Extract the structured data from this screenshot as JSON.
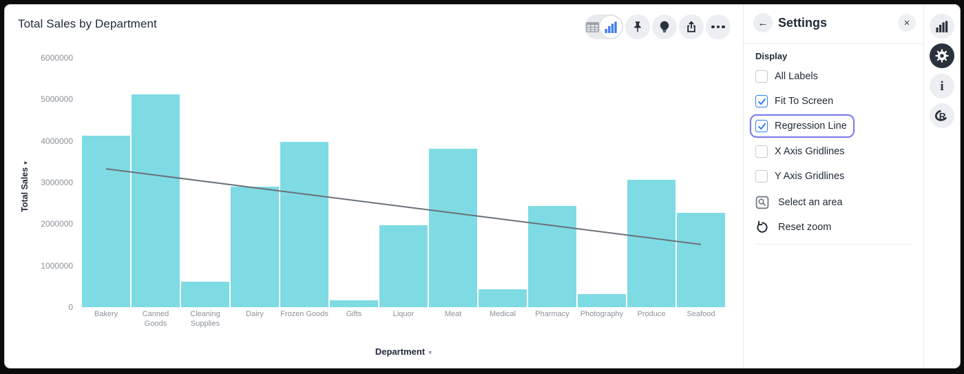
{
  "window": {
    "title": "Total Sales by Department"
  },
  "toolbar": {
    "icons": [
      {
        "name": "table-view-icon"
      },
      {
        "name": "bar-chart-view-icon",
        "active": true
      },
      {
        "name": "pin-icon"
      },
      {
        "name": "insights-lightbulb-icon"
      },
      {
        "name": "share-export-icon"
      },
      {
        "name": "more-ellipsis-icon"
      }
    ]
  },
  "chart_data": {
    "type": "bar",
    "title": "Total Sales by Department",
    "categories": [
      "Bakery",
      "Canned Goods",
      "Cleaning Supplies",
      "Dairy",
      "Frozen Goods",
      "Gifts",
      "Liquor",
      "Meat",
      "Medical",
      "Pharmacy",
      "Photography",
      "Produce",
      "Seafood"
    ],
    "values": [
      4120000,
      5130000,
      620000,
      2900000,
      3980000,
      160000,
      1980000,
      3810000,
      430000,
      2430000,
      310000,
      3060000,
      2270000
    ],
    "xlabel": "Department",
    "ylabel": "Total Sales",
    "ylim": [
      0,
      6000000
    ],
    "yticks": [
      0,
      1000000,
      2000000,
      3000000,
      4000000,
      5000000,
      6000000
    ],
    "grid": "off",
    "regression_line": {
      "from_category": "Bakery",
      "to_category": "Seafood",
      "y_start": 3330000,
      "y_end": 1510000
    },
    "colors": {
      "bar": "#7edbe3",
      "regression_line": "#697077"
    }
  },
  "panel": {
    "title": "Settings",
    "back_icon": "←",
    "close_icon": "×",
    "section": "Display",
    "checkboxes": [
      {
        "label": "All Labels",
        "checked": false
      },
      {
        "label": "Fit To Screen",
        "checked": true
      },
      {
        "label": "Regression Line",
        "checked": true,
        "focused": true
      },
      {
        "label": "X Axis Gridlines",
        "checked": false
      },
      {
        "label": "Y Axis Gridlines",
        "checked": false
      }
    ],
    "actions": [
      {
        "label": "Select an area",
        "icon": "area-select-icon"
      },
      {
        "label": "Reset zoom",
        "icon": "reset-zoom-icon"
      }
    ]
  },
  "rail": {
    "items": [
      {
        "name": "chart-panel-icon",
        "active": false
      },
      {
        "name": "settings-gear-icon",
        "active": true
      },
      {
        "name": "info-icon",
        "active": false
      },
      {
        "name": "r-logo-icon",
        "active": false
      }
    ],
    "colors": {
      "active_bg": "#2a323e",
      "inactive_bg": "#eceef2"
    }
  }
}
